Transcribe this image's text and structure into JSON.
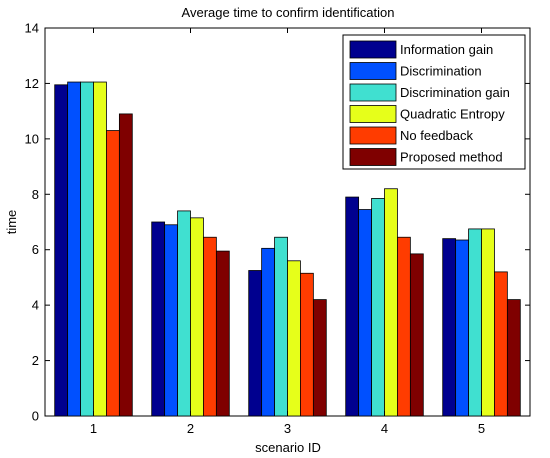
{
  "chart_data": {
    "type": "bar",
    "title": "Average time to confirm identification",
    "xlabel": "scenario ID",
    "ylabel": "time",
    "categories": [
      "1",
      "2",
      "3",
      "4",
      "5"
    ],
    "ylim": [
      0,
      14
    ],
    "yticks": [
      "0",
      "2",
      "4",
      "6",
      "8",
      "10",
      "12",
      "14"
    ],
    "grid": false,
    "legend_position": "top-right",
    "series": [
      {
        "name": "Information gain",
        "color": "#00008f",
        "values": [
          11.95,
          7.0,
          5.25,
          7.9,
          6.4
        ]
      },
      {
        "name": "Discrimination",
        "color": "#0050ff",
        "values": [
          12.05,
          6.9,
          6.05,
          7.45,
          6.35
        ]
      },
      {
        "name": "Discrimination gain",
        "color": "#40e0d0",
        "values": [
          12.05,
          7.4,
          6.45,
          7.85,
          6.75
        ]
      },
      {
        "name": "Quadratic Entropy",
        "color": "#e6ff1a",
        "values": [
          12.05,
          7.15,
          5.6,
          8.2,
          6.75
        ]
      },
      {
        "name": "No feedback",
        "color": "#ff3c00",
        "values": [
          10.3,
          6.45,
          5.15,
          6.45,
          5.2
        ]
      },
      {
        "name": "Proposed method",
        "color": "#7f0000",
        "values": [
          10.9,
          5.95,
          4.2,
          5.85,
          4.2
        ]
      }
    ]
  }
}
